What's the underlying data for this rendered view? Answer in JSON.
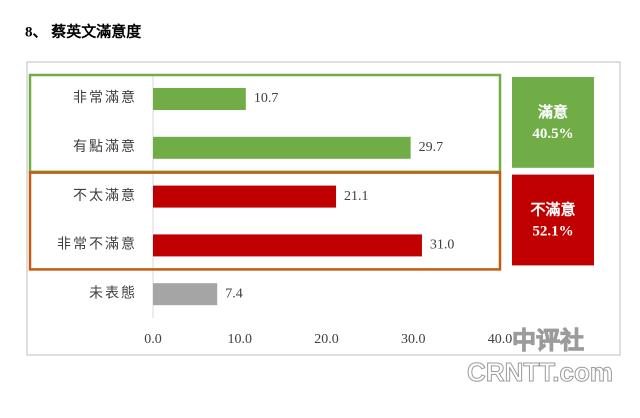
{
  "chart_data": {
    "type": "barh",
    "title": "8、 蔡英文滿意度",
    "categories": [
      "非常滿意",
      "有點滿意",
      "不太滿意",
      "非常不滿意",
      "未表態"
    ],
    "values": [
      10.7,
      29.7,
      21.1,
      31.0,
      7.4
    ],
    "value_labels": [
      "10.7",
      "29.7",
      "21.1",
      "31.0",
      "7.4"
    ],
    "colors": [
      "#70ad47",
      "#70ad47",
      "#c00000",
      "#c00000",
      "#a5a5a5"
    ],
    "xlim": [
      0,
      40
    ],
    "xticks": [
      {
        "value": 0,
        "label": "0.0"
      },
      {
        "value": 10,
        "label": "10.0"
      },
      {
        "value": 20,
        "label": "20.0"
      },
      {
        "value": 30,
        "label": "30.0"
      },
      {
        "value": 40,
        "label": "40.0"
      }
    ],
    "groups": [
      {
        "name": "滿意",
        "value": 40.5,
        "value_label": "40.5%",
        "color": "#70ad47",
        "border": "#70ad47",
        "rows": [
          0,
          1
        ]
      },
      {
        "name": "不滿意",
        "value": 52.1,
        "value_label": "52.1%",
        "color": "#c00000",
        "border": "#c55a11",
        "rows": [
          2,
          3
        ]
      }
    ],
    "watermark": [
      "中评社",
      "CRNTT.com"
    ]
  }
}
